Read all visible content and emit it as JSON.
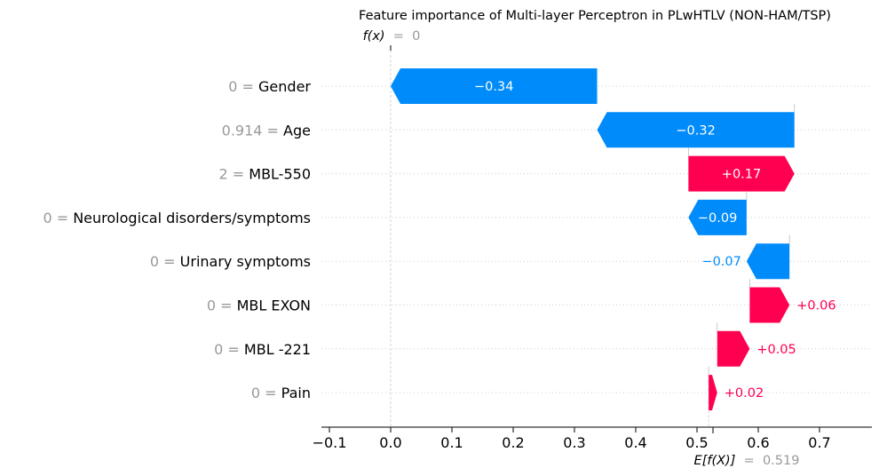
{
  "chart_data": {
    "type": "waterfall",
    "title": "Feature importance of Multi-layer Perceptron in PLwHTLV (NON-HAM/TSP)",
    "fx_label": "f(x)",
    "fx_value": "0",
    "ex_label": "E[f(X)]",
    "ex_value": "0.519",
    "fx_numeric": 0.0,
    "ex_numeric": 0.519,
    "xlim": [
      -0.115,
      0.77
    ],
    "xticks": [
      -0.1,
      0.0,
      0.1,
      0.2,
      0.3,
      0.4,
      0.5,
      0.6,
      0.7
    ],
    "xtick_labels": [
      "−0.1",
      "0.0",
      "0.1",
      "0.2",
      "0.3",
      "0.4",
      "0.5",
      "0.6",
      "0.7"
    ],
    "features": [
      {
        "feature_value": "0",
        "feature": "Gender",
        "start": 0.337,
        "end": 0.0,
        "label": "−0.34",
        "label_inside": true
      },
      {
        "feature_value": "0.914",
        "feature": "Age",
        "start": 0.659,
        "end": 0.337,
        "label": "−0.32",
        "label_inside": true
      },
      {
        "feature_value": "2",
        "feature": "MBL-550",
        "start": 0.486,
        "end": 0.659,
        "label": "+0.17",
        "label_inside": true
      },
      {
        "feature_value": "0",
        "feature": "Neurological disorders/symptoms",
        "start": 0.581,
        "end": 0.486,
        "label": "−0.09",
        "label_inside": true
      },
      {
        "feature_value": "0",
        "feature": "Urinary symptoms",
        "start": 0.651,
        "end": 0.581,
        "label": "−0.07",
        "label_inside": false
      },
      {
        "feature_value": "0",
        "feature": "MBL EXON",
        "start": 0.586,
        "end": 0.651,
        "label": "+0.06",
        "label_inside": false
      },
      {
        "feature_value": "0",
        "feature": "MBL -221",
        "start": 0.533,
        "end": 0.586,
        "label": "+0.05",
        "label_inside": false
      },
      {
        "feature_value": "0",
        "feature": "Pain",
        "start": 0.519,
        "end": 0.533,
        "label": "+0.02",
        "label_inside": false
      }
    ],
    "colors": {
      "positive": "#ff0051",
      "negative": "#008bfb",
      "feature_value": "#999999",
      "text": "#000000",
      "grid": "#cccccc"
    }
  }
}
